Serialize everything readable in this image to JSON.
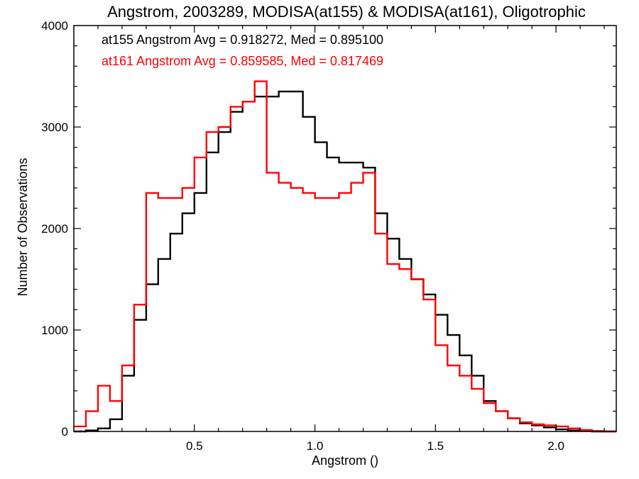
{
  "chart_data": {
    "type": "line",
    "title": "Angstrom, 2003289, MODISA(at155) & MODISA(at161), Oligotrophic",
    "xlabel": "Angstrom ()",
    "ylabel": "Number of Observations",
    "xlim": [
      0.0,
      2.25
    ],
    "ylim": [
      0,
      4000
    ],
    "x_ticks": [
      0.5,
      1.0,
      1.5,
      2.0
    ],
    "x_tick_labels": [
      "0.5",
      "1.0",
      "1.5",
      "2.0"
    ],
    "y_ticks": [
      0,
      1000,
      2000,
      3000,
      4000
    ],
    "y_tick_labels": [
      "0",
      "1000",
      "2000",
      "3000",
      "4000"
    ],
    "grid": false,
    "legend_position": "top-left",
    "annotations": [
      {
        "text": "at155 Angstrom Avg = 0.918272, Med = 0.895100",
        "color": "#000000"
      },
      {
        "text": "at161 Angstrom Avg = 0.859585, Med = 0.817469",
        "color": "#ff0000"
      }
    ],
    "series": [
      {
        "color": "#000000",
        "x": [
          0.0,
          0.05,
          0.1,
          0.15,
          0.2,
          0.25,
          0.3,
          0.35,
          0.4,
          0.45,
          0.5,
          0.55,
          0.6,
          0.65,
          0.7,
          0.75,
          0.8,
          0.85,
          0.9,
          0.95,
          1.0,
          1.05,
          1.1,
          1.15,
          1.2,
          1.25,
          1.3,
          1.35,
          1.4,
          1.45,
          1.5,
          1.55,
          1.6,
          1.65,
          1.7,
          1.75,
          1.8,
          1.85,
          1.9,
          1.95,
          2.0,
          2.05,
          2.1,
          2.15,
          2.2,
          2.25
        ],
        "values": [
          0,
          10,
          30,
          120,
          550,
          1100,
          1450,
          1700,
          1950,
          2150,
          2350,
          2750,
          2950,
          3150,
          3250,
          3300,
          3300,
          3350,
          3350,
          3100,
          2850,
          2700,
          2650,
          2650,
          2600,
          2150,
          1900,
          1700,
          1500,
          1350,
          1150,
          950,
          750,
          550,
          300,
          200,
          130,
          80,
          60,
          40,
          20,
          10,
          5,
          0,
          0,
          0
        ]
      },
      {
        "color": "#ff0000",
        "x": [
          0.0,
          0.05,
          0.1,
          0.15,
          0.2,
          0.25,
          0.3,
          0.35,
          0.4,
          0.45,
          0.5,
          0.55,
          0.6,
          0.65,
          0.7,
          0.75,
          0.8,
          0.85,
          0.9,
          0.95,
          1.0,
          1.05,
          1.1,
          1.15,
          1.2,
          1.25,
          1.3,
          1.35,
          1.4,
          1.45,
          1.5,
          1.55,
          1.6,
          1.65,
          1.7,
          1.75,
          1.8,
          1.85,
          1.9,
          1.95,
          2.0,
          2.05,
          2.1,
          2.15,
          2.2,
          2.25
        ],
        "values": [
          50,
          200,
          450,
          300,
          650,
          1250,
          2350,
          2300,
          2300,
          2400,
          2700,
          2950,
          3000,
          3200,
          3250,
          3450,
          2550,
          2450,
          2400,
          2350,
          2300,
          2300,
          2350,
          2450,
          2550,
          1950,
          1650,
          1600,
          1500,
          1300,
          850,
          650,
          550,
          420,
          280,
          200,
          130,
          90,
          70,
          60,
          50,
          30,
          15,
          5,
          0,
          0
        ]
      }
    ]
  }
}
